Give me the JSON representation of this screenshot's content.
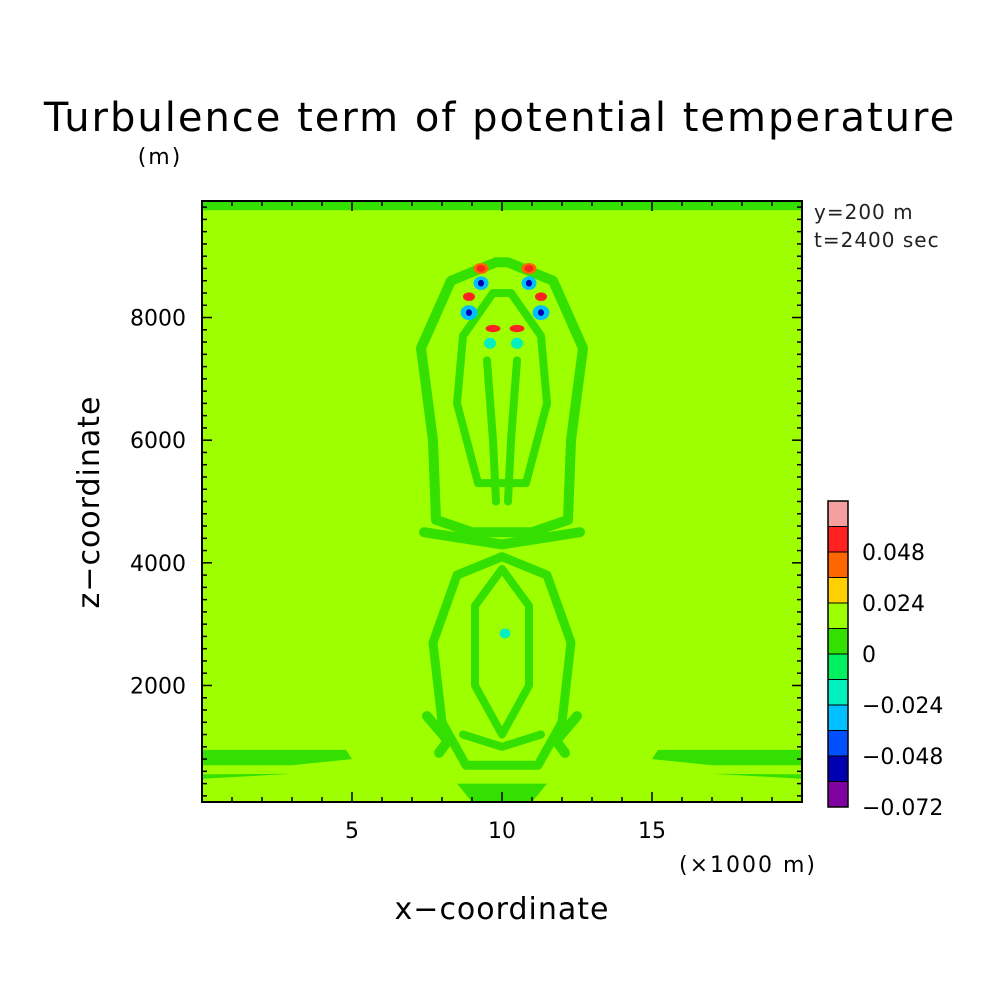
{
  "chart_data": {
    "type": "heatmap",
    "title": "Turbulence term of potential temperature",
    "y_unit": "(m)",
    "x_unit": "(×1000 m)",
    "xlabel": "x−coordinate",
    "ylabel": "z−coordinate",
    "info": [
      "y=200 m",
      "t=2400 sec"
    ],
    "xlim": [
      0,
      20
    ],
    "ylim": [
      100,
      9900
    ],
    "x_ticks": [
      {
        "value": 5,
        "label": "5"
      },
      {
        "value": 10,
        "label": "10"
      },
      {
        "value": 15,
        "label": "15"
      }
    ],
    "y_ticks": [
      {
        "value": 2000,
        "label": "2000"
      },
      {
        "value": 4000,
        "label": "4000"
      },
      {
        "value": 6000,
        "label": "6000"
      },
      {
        "value": 8000,
        "label": "8000"
      }
    ],
    "background_level_color": "#9eff00",
    "contour_interval": 0.012,
    "colorbar": {
      "levels": [
        {
          "color": "#f5a0a0"
        },
        {
          "color": "#ff2020"
        },
        {
          "color": "#ff6600"
        },
        {
          "color": "#ffd000"
        },
        {
          "color": "#9eff00"
        },
        {
          "color": "#33e000"
        },
        {
          "color": "#00f060"
        },
        {
          "color": "#00f0c0"
        },
        {
          "color": "#00c0ff"
        },
        {
          "color": "#0050ff"
        },
        {
          "color": "#0000b0"
        },
        {
          "color": "#8000a0"
        }
      ],
      "labels": [
        {
          "boundary": 2,
          "label": "0.048"
        },
        {
          "boundary": 4,
          "label": "0.024"
        },
        {
          "boundary": 6,
          "label": "0"
        },
        {
          "boundary": 8,
          "label": "−0.024"
        },
        {
          "boundary": 10,
          "label": "−0.048"
        },
        {
          "boundary": 12,
          "label": "−0.072"
        }
      ]
    },
    "features": [
      {
        "kind": "region",
        "color": "#33e000",
        "points": [
          [
            0,
            9900
          ],
          [
            20,
            9900
          ],
          [
            20,
            9750
          ],
          [
            0,
            9750
          ]
        ]
      },
      {
        "kind": "region",
        "color": "#33e000",
        "points": [
          [
            0,
            950
          ],
          [
            4.8,
            950
          ],
          [
            5,
            800
          ],
          [
            3,
            700
          ],
          [
            0,
            700
          ]
        ]
      },
      {
        "kind": "region",
        "color": "#33e000",
        "points": [
          [
            20,
            950
          ],
          [
            15.2,
            950
          ],
          [
            15,
            800
          ],
          [
            17,
            700
          ],
          [
            20,
            700
          ]
        ]
      },
      {
        "kind": "region",
        "color": "#33e000",
        "points": [
          [
            0,
            550
          ],
          [
            3,
            560
          ],
          [
            0,
            480
          ]
        ]
      },
      {
        "kind": "region",
        "color": "#33e000",
        "points": [
          [
            20,
            550
          ],
          [
            17,
            560
          ],
          [
            20,
            480
          ]
        ]
      },
      {
        "kind": "region",
        "color": "#33e000",
        "points": [
          [
            8.5,
            400
          ],
          [
            11.5,
            400
          ],
          [
            11,
            100
          ],
          [
            9,
            100
          ]
        ]
      },
      {
        "kind": "ring",
        "color": "#33e000",
        "width": 10,
        "points": [
          [
            9.8,
            8900
          ],
          [
            8.3,
            8600
          ],
          [
            7.3,
            7500
          ],
          [
            7.7,
            6000
          ],
          [
            7.8,
            4700
          ],
          [
            9,
            4500
          ],
          [
            11,
            4500
          ],
          [
            12.2,
            4700
          ],
          [
            12.3,
            6000
          ],
          [
            12.7,
            7500
          ],
          [
            11.7,
            8600
          ],
          [
            10.2,
            8900
          ]
        ]
      },
      {
        "kind": "ring",
        "color": "#33e000",
        "width": 8,
        "points": [
          [
            9.7,
            8400
          ],
          [
            8.7,
            7700
          ],
          [
            8.5,
            6600
          ],
          [
            9.2,
            5300
          ],
          [
            10.8,
            5300
          ],
          [
            11.5,
            6600
          ],
          [
            11.3,
            7700
          ],
          [
            10.3,
            8400
          ]
        ]
      },
      {
        "kind": "line",
        "color": "#33e000",
        "width": 8,
        "points": [
          [
            9.5,
            7300
          ],
          [
            9.7,
            6000
          ],
          [
            9.8,
            5000
          ]
        ]
      },
      {
        "kind": "line",
        "color": "#33e000",
        "width": 8,
        "points": [
          [
            10.5,
            7300
          ],
          [
            10.3,
            6000
          ],
          [
            10.2,
            5000
          ]
        ]
      },
      {
        "kind": "line",
        "color": "#33e000",
        "width": 10,
        "points": [
          [
            7.4,
            4500
          ],
          [
            10,
            4300
          ],
          [
            12.6,
            4500
          ]
        ]
      },
      {
        "kind": "ring",
        "color": "#33e000",
        "width": 9,
        "points": [
          [
            10,
            4100
          ],
          [
            8.5,
            3800
          ],
          [
            7.7,
            2700
          ],
          [
            8,
            1400
          ],
          [
            8.8,
            700
          ],
          [
            11.2,
            700
          ],
          [
            12,
            1400
          ],
          [
            12.3,
            2700
          ],
          [
            11.5,
            3800
          ]
        ]
      },
      {
        "kind": "ring",
        "color": "#33e000",
        "width": 8,
        "points": [
          [
            10,
            3900
          ],
          [
            9.1,
            3300
          ],
          [
            9.1,
            2000
          ],
          [
            10,
            1200
          ],
          [
            10.9,
            2000
          ],
          [
            10.9,
            3300
          ]
        ]
      },
      {
        "kind": "line",
        "color": "#33e000",
        "width": 10,
        "points": [
          [
            7.5,
            1500
          ],
          [
            8.2,
            1100
          ],
          [
            7.9,
            900
          ]
        ]
      },
      {
        "kind": "line",
        "color": "#33e000",
        "width": 10,
        "points": [
          [
            12.5,
            1500
          ],
          [
            11.8,
            1100
          ],
          [
            12.1,
            900
          ]
        ]
      },
      {
        "kind": "line",
        "color": "#33e000",
        "width": 8,
        "points": [
          [
            8.7,
            1200
          ],
          [
            10,
            1000
          ],
          [
            11.3,
            1200
          ]
        ]
      },
      {
        "kind": "blob",
        "color": "#ff6600",
        "x": 9.3,
        "y": 8800,
        "rx": 0.25,
        "ry": 90
      },
      {
        "kind": "blob",
        "color": "#ff2020",
        "x": 9.3,
        "y": 8800,
        "rx": 0.15,
        "ry": 55
      },
      {
        "kind": "blob",
        "color": "#ff6600",
        "x": 10.9,
        "y": 8800,
        "rx": 0.25,
        "ry": 90
      },
      {
        "kind": "blob",
        "color": "#ff2020",
        "x": 10.9,
        "y": 8800,
        "rx": 0.15,
        "ry": 55
      },
      {
        "kind": "blob",
        "color": "#00c0ff",
        "x": 9.3,
        "y": 8560,
        "rx": 0.25,
        "ry": 110
      },
      {
        "kind": "blob",
        "color": "#0000b0",
        "x": 9.3,
        "y": 8560,
        "rx": 0.1,
        "ry": 55
      },
      {
        "kind": "blob",
        "color": "#00c0ff",
        "x": 10.9,
        "y": 8560,
        "rx": 0.25,
        "ry": 110
      },
      {
        "kind": "blob",
        "color": "#0000b0",
        "x": 10.9,
        "y": 8560,
        "rx": 0.1,
        "ry": 55
      },
      {
        "kind": "blob",
        "color": "#ff2020",
        "x": 8.9,
        "y": 8340,
        "rx": 0.2,
        "ry": 70
      },
      {
        "kind": "blob",
        "color": "#ff2020",
        "x": 11.3,
        "y": 8340,
        "rx": 0.2,
        "ry": 70
      },
      {
        "kind": "blob",
        "color": "#00c0ff",
        "x": 8.9,
        "y": 8080,
        "rx": 0.28,
        "ry": 120
      },
      {
        "kind": "blob",
        "color": "#0000b0",
        "x": 8.9,
        "y": 8080,
        "rx": 0.1,
        "ry": 55
      },
      {
        "kind": "blob",
        "color": "#00c0ff",
        "x": 11.3,
        "y": 8080,
        "rx": 0.28,
        "ry": 120
      },
      {
        "kind": "blob",
        "color": "#0000b0",
        "x": 11.3,
        "y": 8080,
        "rx": 0.1,
        "ry": 55
      },
      {
        "kind": "blob",
        "color": "#ff2020",
        "x": 9.7,
        "y": 7820,
        "rx": 0.25,
        "ry": 60
      },
      {
        "kind": "blob",
        "color": "#ff2020",
        "x": 10.5,
        "y": 7820,
        "rx": 0.25,
        "ry": 60
      },
      {
        "kind": "blob",
        "color": "#00f0c0",
        "x": 9.6,
        "y": 7580,
        "rx": 0.2,
        "ry": 90
      },
      {
        "kind": "blob",
        "color": "#00f0c0",
        "x": 10.5,
        "y": 7580,
        "rx": 0.2,
        "ry": 90
      },
      {
        "kind": "blob",
        "color": "#00f0c0",
        "x": 10.1,
        "y": 2850,
        "rx": 0.18,
        "ry": 80
      }
    ]
  }
}
